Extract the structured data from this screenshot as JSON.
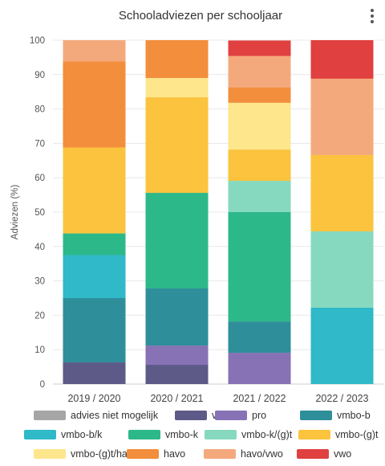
{
  "chart_data": {
    "type": "bar",
    "stacked": true,
    "title": "Schooladviezen per schooljaar",
    "ylabel": "Adviezen (%)",
    "xlabel": "",
    "ylim": [
      0,
      100
    ],
    "yticks": [
      0,
      10,
      20,
      30,
      40,
      50,
      60,
      70,
      80,
      90,
      100
    ],
    "grid": true,
    "legend_position": "bottom",
    "categories": [
      "2019 / 2020",
      "2020 / 2021",
      "2021 / 2022",
      "2022 / 2023"
    ],
    "series": [
      {
        "name": "advies niet mogelijk",
        "color": "#a6a6a6",
        "values": [
          0,
          0,
          0,
          0
        ]
      },
      {
        "name": "vso",
        "color": "#5e5a87",
        "values": [
          6.3,
          5.6,
          0,
          0
        ]
      },
      {
        "name": "pro",
        "color": "#8672b5",
        "values": [
          0,
          5.6,
          9.1,
          0
        ]
      },
      {
        "name": "vmbo-b",
        "color": "#2e8f9a",
        "values": [
          18.7,
          16.6,
          9.1,
          0
        ]
      },
      {
        "name": "vmbo-b/k",
        "color": "#2fb9c9",
        "values": [
          12.5,
          0,
          0,
          22.2
        ]
      },
      {
        "name": "vmbo-k",
        "color": "#2db88a",
        "values": [
          6.3,
          27.8,
          31.8,
          0
        ]
      },
      {
        "name": "vmbo-k/(g)t",
        "color": "#86d9bf",
        "values": [
          0,
          0,
          9.1,
          22.2
        ]
      },
      {
        "name": "vmbo-(g)t",
        "color": "#fbc33e",
        "values": [
          25.0,
          27.8,
          9.1,
          22.2
        ]
      },
      {
        "name": "vmbo-(g)t/havo",
        "color": "#fde68c",
        "values": [
          0,
          5.6,
          13.6,
          0
        ]
      },
      {
        "name": "havo",
        "color": "#f28e3c",
        "values": [
          25.0,
          11.0,
          4.5,
          0
        ]
      },
      {
        "name": "havo/vwo",
        "color": "#f4a97c",
        "values": [
          6.2,
          0,
          9.1,
          22.2
        ]
      },
      {
        "name": "vwo",
        "color": "#e0403f",
        "values": [
          0,
          0,
          4.5,
          11.2
        ]
      }
    ]
  },
  "ui": {
    "menu_icon": "more-vertical-icon"
  }
}
